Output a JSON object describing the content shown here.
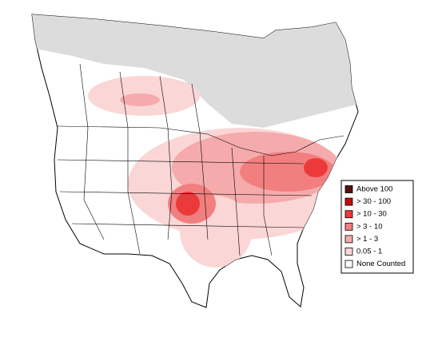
{
  "legend": {
    "items": [
      {
        "label": "Above 100",
        "color": "#5a0d0d"
      },
      {
        "label": "> 30 - 100",
        "color": "#c40c0c"
      },
      {
        "label": "> 10 - 30",
        "color": "#ec3a3a"
      },
      {
        "label": "> 3 - 10",
        "color": "#f27f7f"
      },
      {
        "label": "> 1 - 3",
        "color": "#f5abab"
      },
      {
        "label": "0.05 - 1",
        "color": "#fbd6d6"
      },
      {
        "label": "None Counted",
        "color": "#ffffff"
      }
    ]
  }
}
